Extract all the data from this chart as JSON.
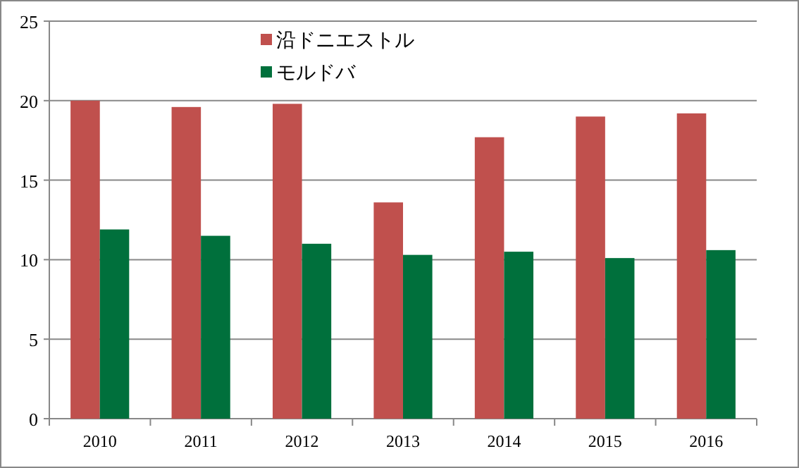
{
  "chart_data": {
    "type": "bar",
    "categories": [
      "2010",
      "2011",
      "2012",
      "2013",
      "2014",
      "2015",
      "2016"
    ],
    "series": [
      {
        "name": "沿ドニエストル",
        "color": "#c0504d",
        "values": [
          20.0,
          19.6,
          19.8,
          13.6,
          17.7,
          19.0,
          19.2
        ]
      },
      {
        "name": "モルドバ",
        "color": "#00703c",
        "values": [
          11.9,
          11.5,
          11.0,
          10.3,
          10.5,
          10.1,
          10.6
        ]
      }
    ],
    "ylim": [
      0,
      25
    ],
    "yticks": [
      0,
      5,
      10,
      15,
      20,
      25
    ],
    "grid": "y",
    "legend": "top"
  }
}
